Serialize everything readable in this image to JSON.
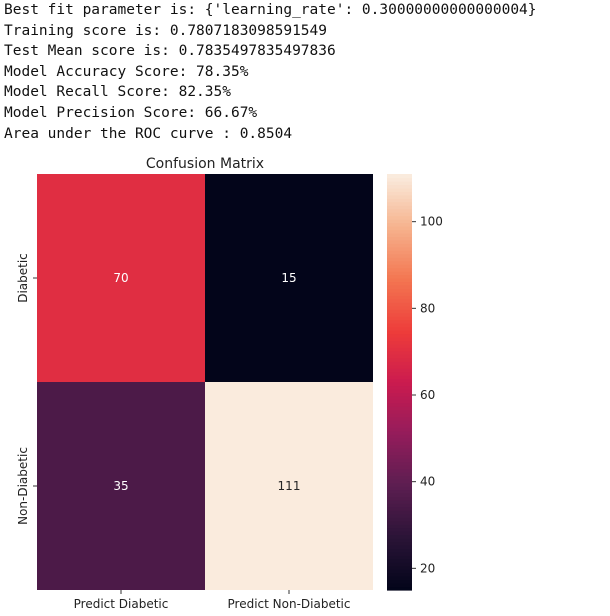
{
  "output_lines": [
    "Best fit parameter is: {'learning_rate': 0.30000000000000004}",
    "Training score is: 0.7807183098591549",
    "Test Mean score is: 0.7835497835497836",
    "Model Accuracy Score: 78.35%",
    "Model Recall Score: 82.35%",
    "Model Precision Score: 66.67%",
    "Area under the ROC curve : 0.8504"
  ],
  "chart_data": {
    "type": "heatmap",
    "title": "Confusion Matrix",
    "row_labels": [
      "Diabetic",
      "Non-Diabetic"
    ],
    "col_labels": [
      "Predict Diabetic",
      "Predict Non-Diabetic"
    ],
    "values": [
      [
        70,
        15
      ],
      [
        35,
        111
      ]
    ],
    "colorbar": {
      "min": 15,
      "max": 111,
      "ticks": [
        20,
        40,
        60,
        80,
        100
      ]
    },
    "colormap": "rocket",
    "annotations": true
  }
}
